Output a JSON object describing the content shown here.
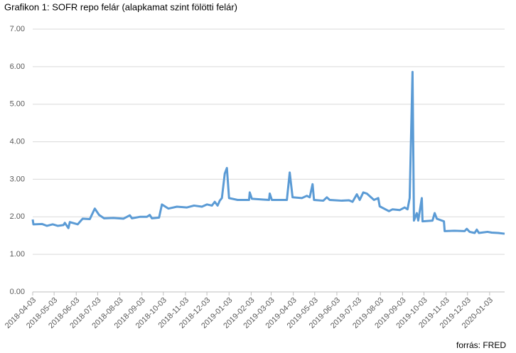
{
  "chart_data": {
    "type": "line",
    "title": "Grafikon 1: SOFR repo felár (alapkamat szint fölötti felár)",
    "source": "forrás: FRED",
    "color": "#5b9bd5",
    "grid": true,
    "x": [
      "2018-04-03",
      "2018-04-04",
      "2018-04-16",
      "2018-04-23",
      "2018-05-01",
      "2018-05-08",
      "2018-05-16",
      "2018-05-18",
      "2018-05-23",
      "2018-05-25",
      "2018-06-05",
      "2018-06-12",
      "2018-06-22",
      "2018-06-29",
      "2018-07-05",
      "2018-07-12",
      "2018-07-25",
      "2018-08-08",
      "2018-08-17",
      "2018-08-20",
      "2018-08-31",
      "2018-09-10",
      "2018-09-14",
      "2018-09-17",
      "2018-09-27",
      "2018-10-01",
      "2018-10-10",
      "2018-10-22",
      "2018-11-05",
      "2018-11-15",
      "2018-11-26",
      "2018-12-03",
      "2018-12-10",
      "2018-12-14",
      "2018-12-18",
      "2018-12-21",
      "2018-12-24",
      "2018-12-28",
      "2018-12-31",
      "2019-01-03",
      "2019-01-15",
      "2019-01-31",
      "2019-02-01",
      "2019-02-04",
      "2019-02-20",
      "2019-02-28",
      "2019-03-01",
      "2019-03-04",
      "2019-03-25",
      "2019-03-29",
      "2019-04-02",
      "2019-04-15",
      "2019-04-22",
      "2019-04-26",
      "2019-04-30",
      "2019-05-02",
      "2019-05-15",
      "2019-05-20",
      "2019-05-24",
      "2019-06-10",
      "2019-06-20",
      "2019-06-25",
      "2019-06-28",
      "2019-07-01",
      "2019-07-05",
      "2019-07-10",
      "2019-07-15",
      "2019-07-25",
      "2019-07-31",
      "2019-08-02",
      "2019-08-15",
      "2019-08-20",
      "2019-08-30",
      "2019-09-06",
      "2019-09-10",
      "2019-09-13",
      "2019-09-17",
      "2019-09-19",
      "2019-09-23",
      "2019-09-25",
      "2019-09-30",
      "2019-10-01",
      "2019-10-15",
      "2019-10-18",
      "2019-10-21",
      "2019-10-31",
      "2019-11-01",
      "2019-11-15",
      "2019-11-29",
      "2019-12-02",
      "2019-12-06",
      "2019-12-13",
      "2019-12-16",
      "2019-12-19",
      "2019-12-31",
      "2020-01-06",
      "2020-01-15",
      "2020-01-24"
    ],
    "values": [
      1.93,
      1.8,
      1.81,
      1.76,
      1.8,
      1.76,
      1.78,
      1.84,
      1.7,
      1.86,
      1.8,
      1.95,
      1.94,
      2.22,
      2.05,
      1.96,
      1.97,
      1.95,
      2.04,
      1.96,
      2.0,
      2.0,
      2.05,
      1.96,
      1.98,
      2.33,
      2.22,
      2.27,
      2.25,
      2.3,
      2.27,
      2.33,
      2.3,
      2.4,
      2.3,
      2.43,
      2.5,
      3.15,
      3.3,
      2.5,
      2.45,
      2.45,
      2.65,
      2.48,
      2.46,
      2.45,
      2.62,
      2.45,
      2.45,
      3.18,
      2.52,
      2.5,
      2.56,
      2.52,
      2.87,
      2.45,
      2.43,
      2.52,
      2.45,
      2.43,
      2.44,
      2.4,
      2.5,
      2.6,
      2.45,
      2.65,
      2.62,
      2.45,
      2.5,
      2.28,
      2.15,
      2.2,
      2.18,
      2.25,
      2.2,
      2.5,
      5.86,
      1.9,
      2.1,
      1.9,
      2.5,
      1.88,
      1.9,
      2.1,
      1.95,
      1.88,
      1.62,
      1.63,
      1.62,
      1.68,
      1.6,
      1.57,
      1.66,
      1.57,
      1.6,
      1.58,
      1.57,
      1.55
    ],
    "xlim": [
      "2018-04-03",
      "2020-01-24"
    ],
    "xticks": [
      "2018-04-03",
      "2018-05-03",
      "2018-06-03",
      "2018-07-03",
      "2018-08-03",
      "2018-09-03",
      "2018-10-03",
      "2018-11-03",
      "2018-12-03",
      "2019-01-03",
      "2019-02-03",
      "2019-03-03",
      "2019-04-03",
      "2019-05-03",
      "2019-06-03",
      "2019-07-03",
      "2019-08-03",
      "2019-09-03",
      "2019-10-03",
      "2019-11-03",
      "2019-12-03",
      "2020-01-03"
    ],
    "ylim": [
      0,
      7
    ],
    "yticks": [
      {
        "value": 0,
        "label": "0.00"
      },
      {
        "value": 1,
        "label": "1.00"
      },
      {
        "value": 2,
        "label": "2.00"
      },
      {
        "value": 3,
        "label": "3.00"
      },
      {
        "value": 4,
        "label": "4.00"
      },
      {
        "value": 5,
        "label": "5.00"
      },
      {
        "value": 6,
        "label": "6.00"
      },
      {
        "value": 7,
        "label": "7.00"
      }
    ]
  }
}
